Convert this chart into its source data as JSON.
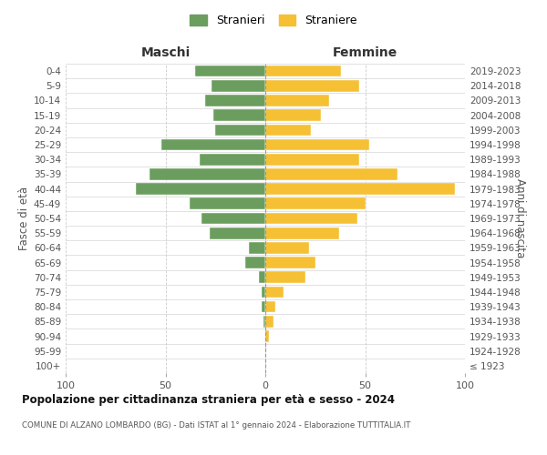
{
  "age_groups": [
    "100+",
    "95-99",
    "90-94",
    "85-89",
    "80-84",
    "75-79",
    "70-74",
    "65-69",
    "60-64",
    "55-59",
    "50-54",
    "45-49",
    "40-44",
    "35-39",
    "30-34",
    "25-29",
    "20-24",
    "15-19",
    "10-14",
    "5-9",
    "0-4"
  ],
  "birth_years": [
    "≤ 1923",
    "1924-1928",
    "1929-1933",
    "1934-1938",
    "1939-1943",
    "1944-1948",
    "1949-1953",
    "1954-1958",
    "1959-1963",
    "1964-1968",
    "1969-1973",
    "1974-1978",
    "1979-1983",
    "1984-1988",
    "1989-1993",
    "1994-1998",
    "1999-2003",
    "2004-2008",
    "2009-2013",
    "2014-2018",
    "2019-2023"
  ],
  "maschi": [
    0,
    0,
    0,
    1,
    2,
    2,
    3,
    10,
    8,
    28,
    32,
    38,
    65,
    58,
    33,
    52,
    25,
    26,
    30,
    27,
    35
  ],
  "femmine": [
    0,
    0,
    2,
    4,
    5,
    9,
    20,
    25,
    22,
    37,
    46,
    50,
    95,
    66,
    47,
    52,
    23,
    28,
    32,
    47,
    38
  ],
  "maschi_color": "#6b9e5e",
  "femmine_color": "#f5c033",
  "background_color": "#ffffff",
  "grid_color": "#cccccc",
  "title": "Popolazione per cittadinanza straniera per età e sesso - 2024",
  "subtitle": "COMUNE DI ALZANO LOMBARDO (BG) - Dati ISTAT al 1° gennaio 2024 - Elaborazione TUTTITALIA.IT",
  "xlabel_left": "Maschi",
  "xlabel_right": "Femmine",
  "ylabel_left": "Fasce di età",
  "ylabel_right": "Anni di nascita",
  "legend_stranieri": "Stranieri",
  "legend_straniere": "Straniere",
  "xlim": 100
}
